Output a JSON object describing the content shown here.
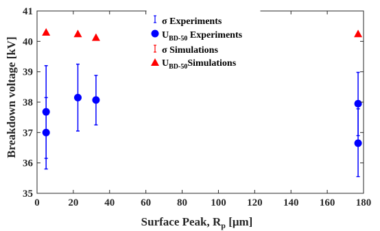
{
  "chart_data": {
    "type": "scatter",
    "xlabel": "Surface Peak, R",
    "xlabel_subscript": "p",
    "xlabel_unit": " [μm]",
    "ylabel": "Breakdown voltage [kV]",
    "xlim": [
      0,
      180
    ],
    "ylim": [
      35,
      41
    ],
    "xticks": [
      0,
      20,
      40,
      60,
      80,
      100,
      120,
      140,
      160,
      180
    ],
    "yticks": [
      35,
      36,
      37,
      38,
      39,
      40,
      41
    ],
    "grid": false,
    "legend_position": "top-center",
    "series": [
      {
        "name": "σ Experiments",
        "kind": "errorbar",
        "color": "#0000ff",
        "points": [
          {
            "x": 5,
            "low": 36.15,
            "high": 39.2
          },
          {
            "x": 5,
            "low": 35.8,
            "high": 38.15
          },
          {
            "x": 22.5,
            "low": 37.05,
            "high": 39.25
          },
          {
            "x": 32.5,
            "low": 37.25,
            "high": 38.88
          },
          {
            "x": 177,
            "low": 36.9,
            "high": 38.98
          },
          {
            "x": 177,
            "low": 35.55,
            "high": 37.78
          }
        ]
      },
      {
        "name": "U_BD-50 Experiments",
        "name_main": "U",
        "name_sub": "BD-50",
        "name_rest": " Experiments",
        "kind": "circle",
        "color": "#0000ff",
        "x": [
          5,
          5,
          22.5,
          32.5,
          177,
          177
        ],
        "y": [
          37.68,
          37.0,
          38.15,
          38.07,
          37.95,
          36.65
        ]
      },
      {
        "name": "σ Simulations",
        "kind": "errorbar",
        "color": "#ff0000",
        "points": []
      },
      {
        "name": "U_BD-50 Simulations",
        "name_main": "U",
        "name_sub": "BD-50",
        "name_rest": "Simulations",
        "kind": "triangle",
        "color": "#ff0000",
        "x": [
          5,
          22.5,
          32.5,
          177
        ],
        "y": [
          40.3,
          40.25,
          40.13,
          40.25
        ]
      }
    ]
  }
}
